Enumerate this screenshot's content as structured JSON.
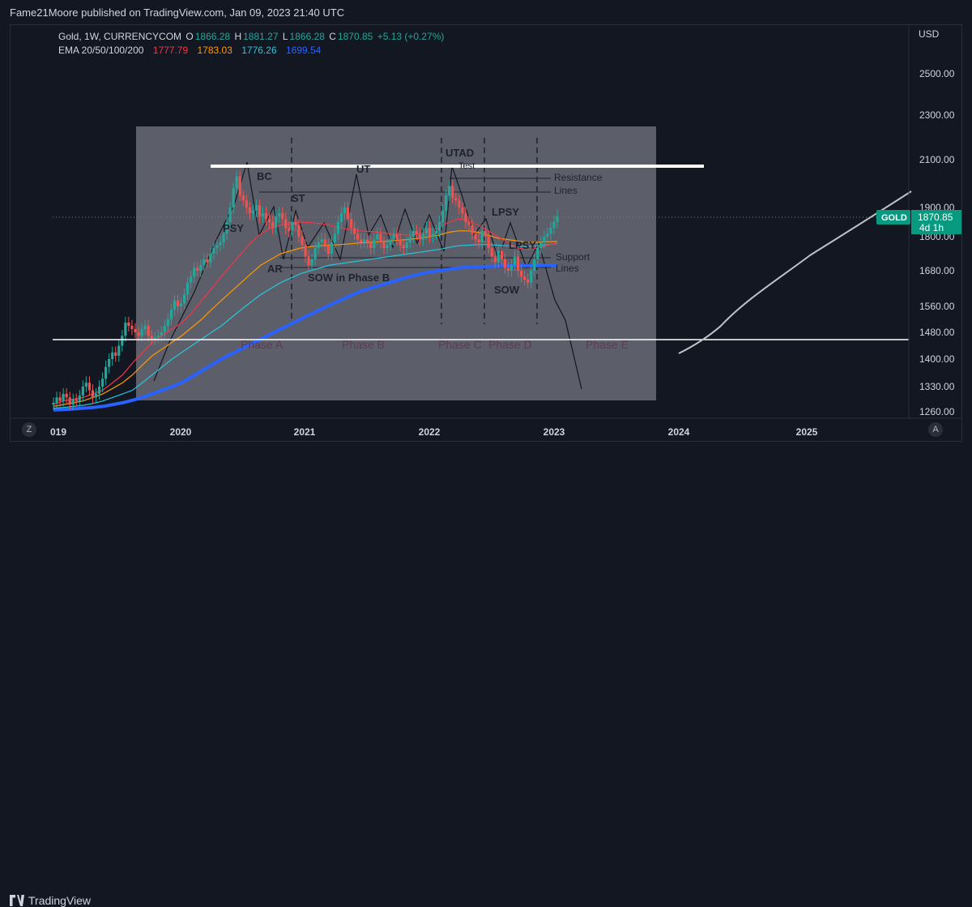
{
  "header": {
    "publish_text": "Fame21Moore published on TradingView.com, Jan 09, 2023 21:40 UTC"
  },
  "legend": {
    "symbol": "Gold, 1W, CURRENCYCOM",
    "o_label": "O",
    "o_value": "1866.28",
    "h_label": "H",
    "h_value": "1881.27",
    "l_label": "L",
    "l_value": "1866.28",
    "c_label": "C",
    "c_value": "1870.85",
    "change": "+5.13 (+0.27%)",
    "ema_label": "EMA 20/50/100/200",
    "ema20": "1777.79",
    "ema50": "1783.03",
    "ema100": "1776.26",
    "ema200": "1699.54"
  },
  "axis": {
    "currency": "USD",
    "price_badge_symbol": "GOLD",
    "price_badge_value": "1870.85",
    "price_badge_time": "4d 1h",
    "y_left_btn": "Z",
    "x_right_btn": "A"
  },
  "footer": {
    "brand": "TradingView"
  },
  "colors": {
    "ema20": "#f23645",
    "ema50": "#ff9800",
    "ema100": "#26c6da",
    "ema200": "#2962ff",
    "up": "#26a69a",
    "down": "#ef5350",
    "box": "#787b86"
  },
  "chart_data": {
    "type": "candlestick",
    "y_scale": "log",
    "ylim": [
      1230,
      2800
    ],
    "xlim": [
      2019.0,
      2026.0
    ],
    "y_ticks": [
      "2500.00",
      "2300.00",
      "2100.00",
      "1900.00",
      "1800.00",
      "1680.00",
      "1560.00",
      "1480.00",
      "1400.00",
      "1330.00",
      "1260.00"
    ],
    "x_ticks": [
      "019",
      "2020",
      "2021",
      "2022",
      "2023",
      "2024",
      "2025"
    ],
    "last_price": 1870.85,
    "annotations": {
      "BC": "BC",
      "ST": "ST",
      "UT": "UT",
      "UTAD": "UTAD",
      "Test": "Test",
      "PSY": "PSY",
      "AR": "AR",
      "SOW_B": "SOW in Phase B",
      "LPSY": "LPSY",
      "LPSY2": "LPSY",
      "SOW": "SOW",
      "resistance": "Resistance",
      "resistance2": "Lines",
      "support": "Support",
      "support2": "Lines",
      "phaseA": "Phase A",
      "phaseB": "Phase B",
      "phaseC": "Phase C",
      "phaseD": "Phase D",
      "phaseE": "Phase E"
    },
    "closes": [
      1285,
      1300,
      1290,
      1310,
      1300,
      1280,
      1295,
      1290,
      1305,
      1330,
      1340,
      1320,
      1300,
      1310,
      1330,
      1350,
      1380,
      1400,
      1420,
      1410,
      1440,
      1470,
      1510,
      1500,
      1490,
      1480,
      1470,
      1490,
      1500,
      1470,
      1460,
      1465,
      1470,
      1480,
      1500,
      1520,
      1550,
      1580,
      1560,
      1570,
      1600,
      1640,
      1660,
      1690,
      1680,
      1700,
      1720,
      1710,
      1740,
      1760,
      1770,
      1780,
      1810,
      1850,
      1900,
      1980,
      2030,
      1950,
      1930,
      1900,
      1880,
      1890,
      1910,
      1870,
      1880,
      1860,
      1850,
      1830,
      1870,
      1880,
      1860,
      1830,
      1820,
      1850,
      1840,
      1800,
      1770,
      1730,
      1700,
      1720,
      1760,
      1780,
      1790,
      1770,
      1740,
      1780,
      1810,
      1850,
      1880,
      1900,
      1860,
      1830,
      1810,
      1790,
      1780,
      1790,
      1780,
      1760,
      1790,
      1810,
      1780,
      1760,
      1770,
      1790,
      1810,
      1790,
      1770,
      1760,
      1780,
      1800,
      1820,
      1810,
      1790,
      1810,
      1830,
      1800,
      1810,
      1820,
      1850,
      1890,
      1950,
      1990,
      1940,
      1930,
      1900,
      1880,
      1850,
      1840,
      1810,
      1790,
      1780,
      1820,
      1800,
      1760,
      1730,
      1710,
      1750,
      1720,
      1690,
      1680,
      1700,
      1730,
      1680,
      1660,
      1650,
      1640,
      1680,
      1720,
      1760,
      1780,
      1800,
      1810,
      1830,
      1850,
      1870
    ],
    "ema20": [
      1280,
      1290,
      1295,
      1300,
      1310,
      1320,
      1340,
      1360,
      1390,
      1420,
      1450,
      1470,
      1490,
      1510,
      1540,
      1580,
      1620,
      1660,
      1700,
      1740,
      1780,
      1810,
      1830,
      1840,
      1845,
      1850,
      1848,
      1845,
      1840,
      1830,
      1825,
      1820,
      1818,
      1815,
      1810,
      1808,
      1805,
      1810,
      1820,
      1830,
      1850,
      1860,
      1855,
      1840,
      1820,
      1800,
      1780,
      1760,
      1755,
      1760,
      1770,
      1778
    ],
    "ema50": [
      1275,
      1280,
      1285,
      1290,
      1300,
      1310,
      1325,
      1340,
      1360,
      1385,
      1410,
      1430,
      1450,
      1470,
      1495,
      1520,
      1550,
      1580,
      1610,
      1640,
      1670,
      1700,
      1720,
      1740,
      1750,
      1760,
      1765,
      1768,
      1770,
      1772,
      1775,
      1778,
      1780,
      1782,
      1785,
      1788,
      1790,
      1795,
      1800,
      1805,
      1815,
      1820,
      1820,
      1815,
      1805,
      1795,
      1790,
      1785,
      1780,
      1780,
      1782,
      1783
    ],
    "ema100": [
      1270,
      1272,
      1275,
      1278,
      1283,
      1290,
      1300,
      1310,
      1320,
      1340,
      1360,
      1380,
      1400,
      1420,
      1440,
      1460,
      1480,
      1500,
      1525,
      1550,
      1575,
      1600,
      1620,
      1640,
      1655,
      1670,
      1680,
      1690,
      1700,
      1705,
      1710,
      1715,
      1720,
      1725,
      1730,
      1735,
      1740,
      1745,
      1750,
      1755,
      1762,
      1768,
      1770,
      1772,
      1772,
      1770,
      1768,
      1766,
      1766,
      1768,
      1772,
      1776
    ],
    "ema200": [
      1265,
      1266,
      1268,
      1270,
      1272,
      1275,
      1280,
      1285,
      1292,
      1300,
      1310,
      1320,
      1330,
      1340,
      1355,
      1370,
      1385,
      1400,
      1415,
      1430,
      1445,
      1460,
      1475,
      1490,
      1505,
      1520,
      1535,
      1550,
      1565,
      1580,
      1595,
      1610,
      1620,
      1630,
      1640,
      1650,
      1660,
      1668,
      1675,
      1680,
      1685,
      1690,
      1692,
      1694,
      1695,
      1696,
      1697,
      1697,
      1698,
      1698,
      1699,
      1699
    ]
  }
}
